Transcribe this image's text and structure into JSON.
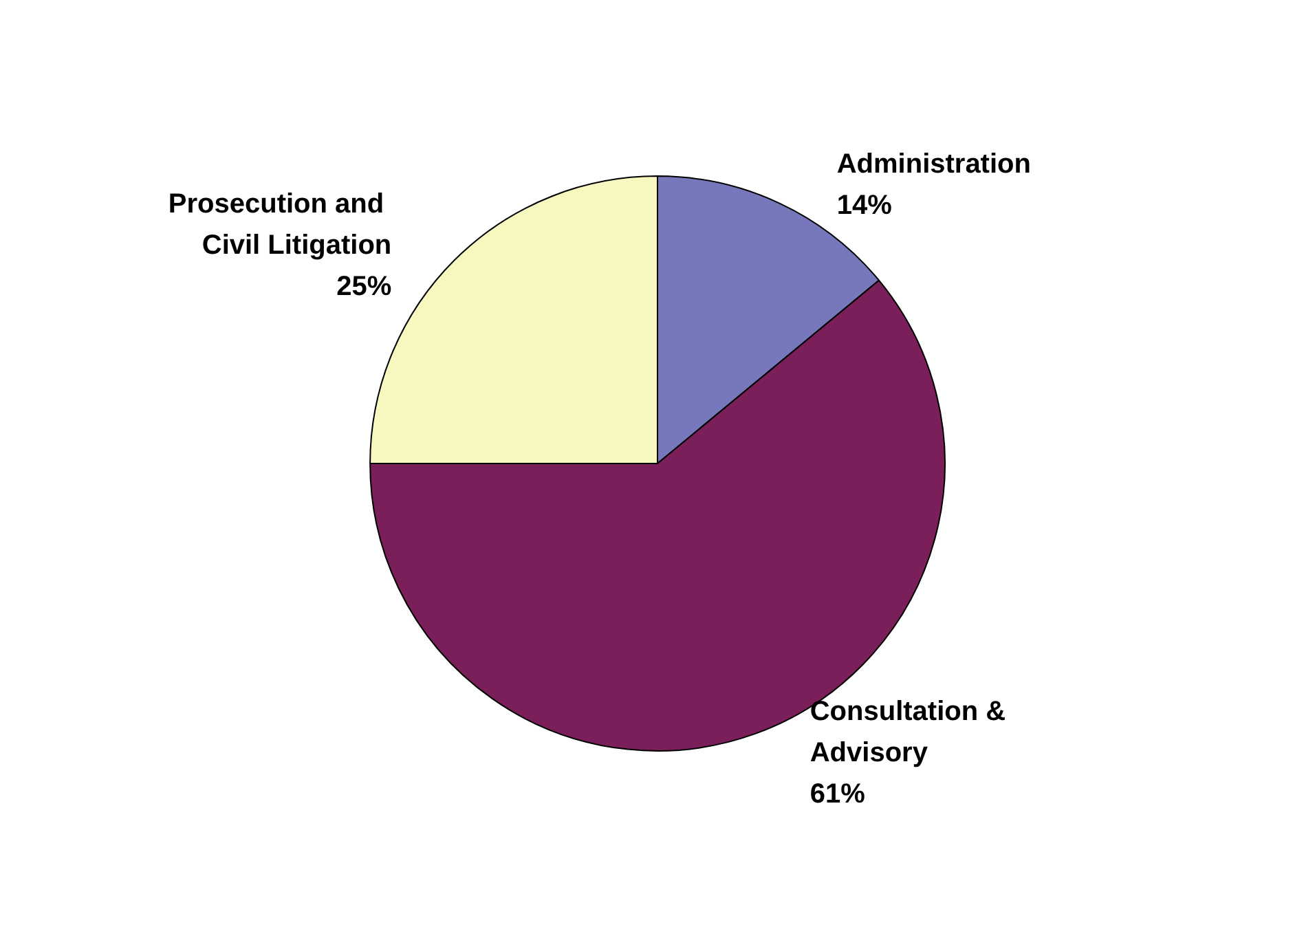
{
  "chart_data": {
    "type": "pie",
    "categories": [
      "Administration",
      "Consultation & Advisory",
      "Prosecution and Civil Litigation"
    ],
    "values": [
      14,
      61,
      25
    ],
    "colors": [
      "#7777bb",
      "#7b1f5a",
      "#f7f7c0"
    ],
    "value_labels": [
      "14%",
      "61%",
      "25%"
    ],
    "legend": false
  }
}
